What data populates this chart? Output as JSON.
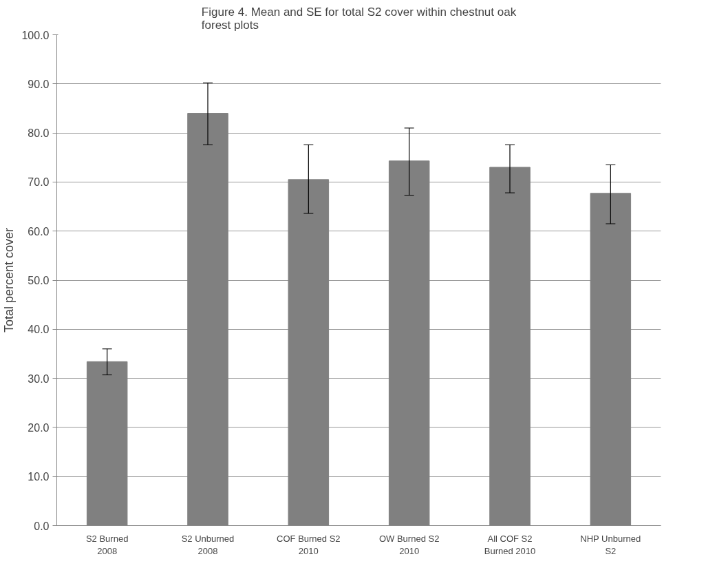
{
  "chart_data": {
    "type": "bar",
    "title": "Figure 4. Mean and SE for total S2 cover within chestnut oak forest plots",
    "ylabel": "Total percent cover",
    "categories": [
      "S2 Burned 2008",
      "S2 Unburned 2008",
      "COF Burned S2 2010",
      "OW Burned S2 2010",
      "All COF S2 Burned 2010",
      "NHP Unburned S2"
    ],
    "values": [
      33.4,
      84.0,
      70.5,
      74.3,
      73.0,
      67.7
    ],
    "errors": [
      [
        30.7,
        36.0
      ],
      [
        77.6,
        90.2
      ],
      [
        63.6,
        77.6
      ],
      [
        67.3,
        81.0
      ],
      [
        67.8,
        77.6
      ],
      [
        61.5,
        73.5
      ]
    ],
    "color": "#808080",
    "ylim": [
      0,
      100
    ],
    "yticks": [
      {
        "value": 0,
        "label": "0.0"
      },
      {
        "value": 10,
        "label": "10.0"
      },
      {
        "value": 20,
        "label": "20.0"
      },
      {
        "value": 30,
        "label": "30.0"
      },
      {
        "value": 40,
        "label": "40.0"
      },
      {
        "value": 50,
        "label": "50.0"
      },
      {
        "value": 60,
        "label": "60.0"
      },
      {
        "value": 70,
        "label": "70.0"
      },
      {
        "value": 80,
        "label": "80.0"
      },
      {
        "value": 90,
        "label": "90.0"
      },
      {
        "value": 100,
        "label": "100.0"
      }
    ],
    "grid": "y"
  }
}
